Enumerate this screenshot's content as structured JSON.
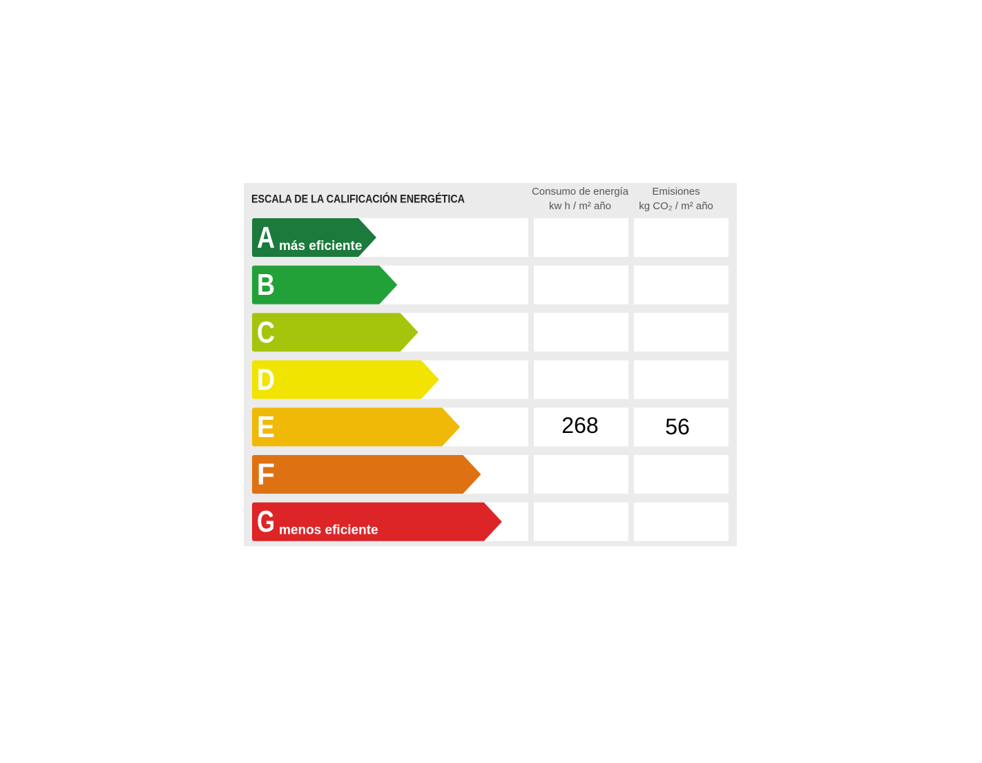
{
  "header": {
    "title": "ESCALA DE LA CALIFICACIÓN ENERGÉTICA",
    "columns": [
      {
        "line1": "Consumo de energía",
        "line2": "kw h / m² año"
      },
      {
        "line1": "Emisiones",
        "line2": "kg CO₂ / m² año"
      }
    ]
  },
  "rows": [
    {
      "letter": "A",
      "label": "más eficiente",
      "color": "#1b7a3c"
    },
    {
      "letter": "B",
      "color": "#22a139"
    },
    {
      "letter": "C",
      "color": "#a4c50b"
    },
    {
      "letter": "D",
      "color": "#f1e401"
    },
    {
      "letter": "E",
      "color": "#f0b908",
      "consumo": 268,
      "emisiones": 56
    },
    {
      "letter": "F",
      "color": "#de7213"
    },
    {
      "letter": "G",
      "label": "menos eficiente",
      "color": "#dd2527"
    }
  ]
}
